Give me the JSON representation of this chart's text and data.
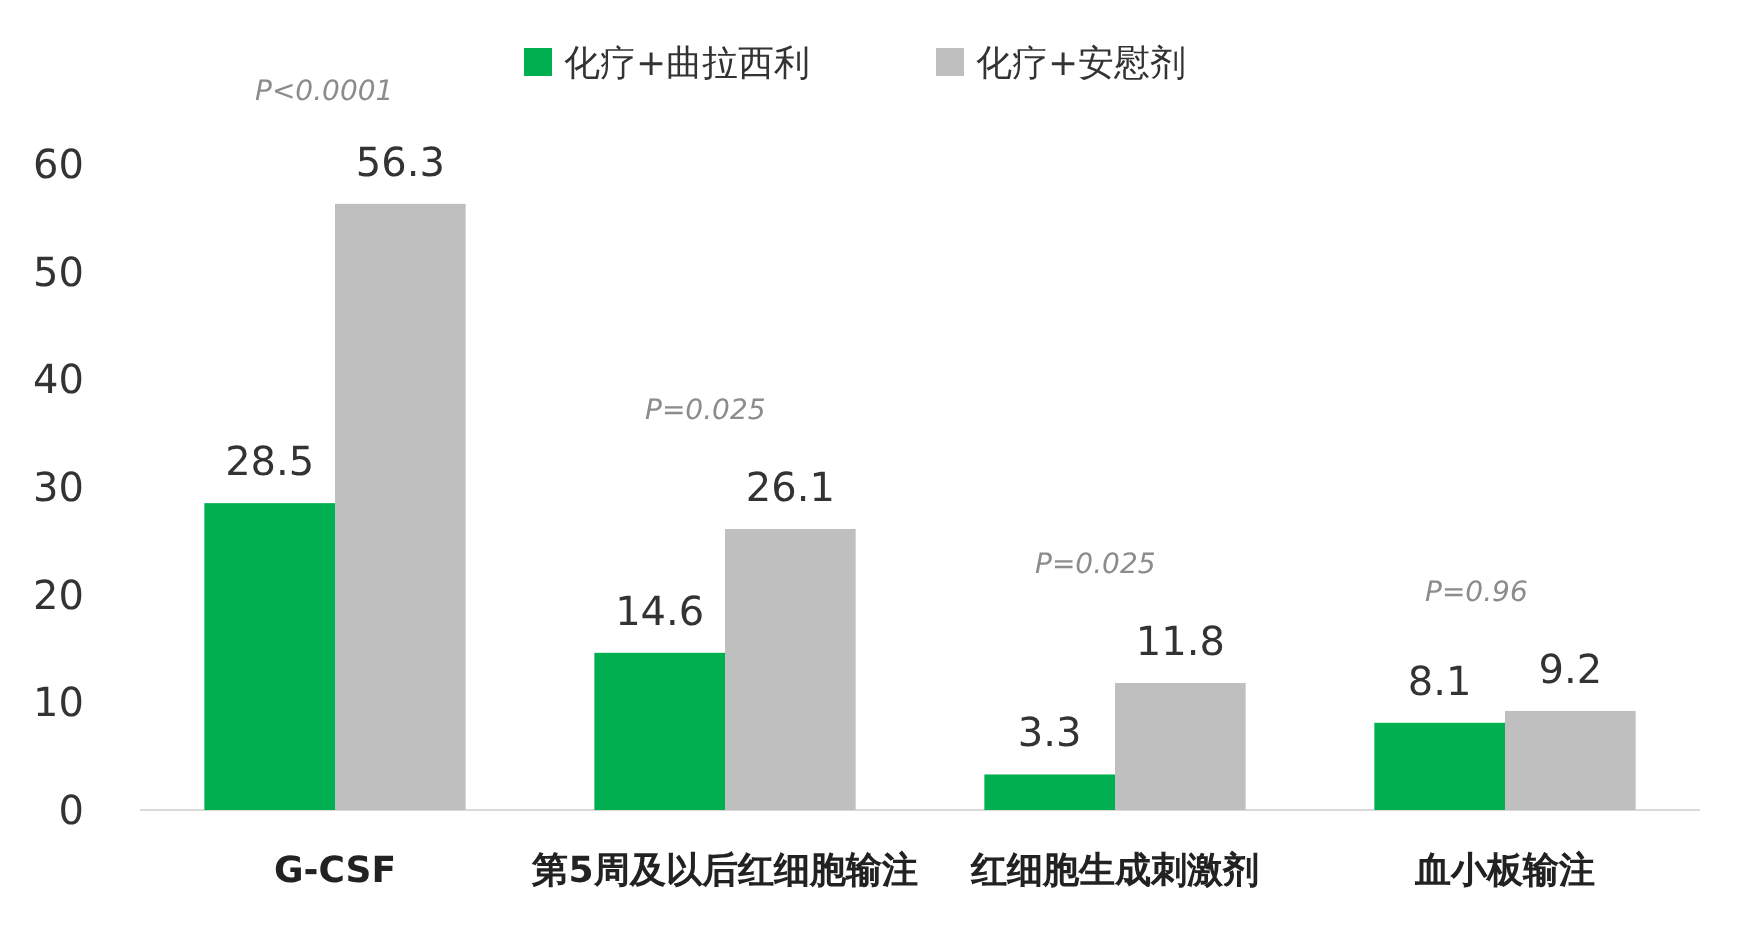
{
  "chart_data": {
    "type": "bar",
    "categories": [
      "G-CSF",
      "第5周及以后红细胞输注",
      "红细胞生成刺激剂",
      "血小板输注"
    ],
    "series": [
      {
        "name": "化疗+曲拉西利",
        "color": "#00b050",
        "values": [
          28.5,
          14.6,
          3.3,
          8.1
        ]
      },
      {
        "name": "化疗+安慰剂",
        "color": "#bfbfbf",
        "values": [
          56.3,
          26.1,
          11.8,
          9.2
        ]
      }
    ],
    "ylim": [
      0,
      60
    ],
    "yticks": [
      0,
      10,
      20,
      30,
      40,
      50,
      60
    ],
    "grid": false,
    "legend": "top",
    "data_labels": true,
    "annotations": [
      "P<0.0001",
      "P=0.025",
      "P=0.025",
      "P=0.96"
    ]
  }
}
